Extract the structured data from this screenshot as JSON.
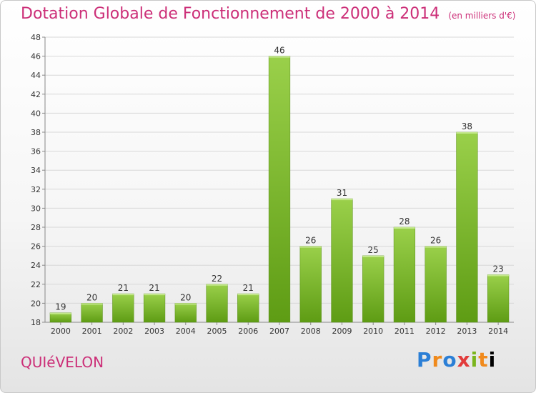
{
  "title": "Dotation Globale de Fonctionnement de 2000 à 2014",
  "subtitle": "(en milliers d'€)",
  "town": "QUIéVELON",
  "logo": "Proxiti",
  "colors": {
    "title": "#cc2f78",
    "bar_light": "#9ad04a",
    "bar_dark": "#5e9c14"
  },
  "chart_data": {
    "type": "bar",
    "title": "Dotation Globale de Fonctionnement de 2000 à 2014",
    "subtitle": "(en milliers d'€)",
    "xlabel": "",
    "ylabel": "",
    "categories": [
      "2000",
      "2001",
      "2002",
      "2003",
      "2004",
      "2005",
      "2006",
      "2007",
      "2008",
      "2009",
      "2010",
      "2011",
      "2012",
      "2013",
      "2014"
    ],
    "values": [
      19,
      20,
      21,
      21,
      20,
      22,
      21,
      46,
      26,
      31,
      25,
      28,
      26,
      38,
      23
    ],
    "ylim": [
      18,
      48
    ],
    "yticks": [
      18,
      20,
      22,
      24,
      26,
      28,
      30,
      32,
      34,
      36,
      38,
      40,
      42,
      44,
      46,
      48
    ],
    "grid": true
  }
}
